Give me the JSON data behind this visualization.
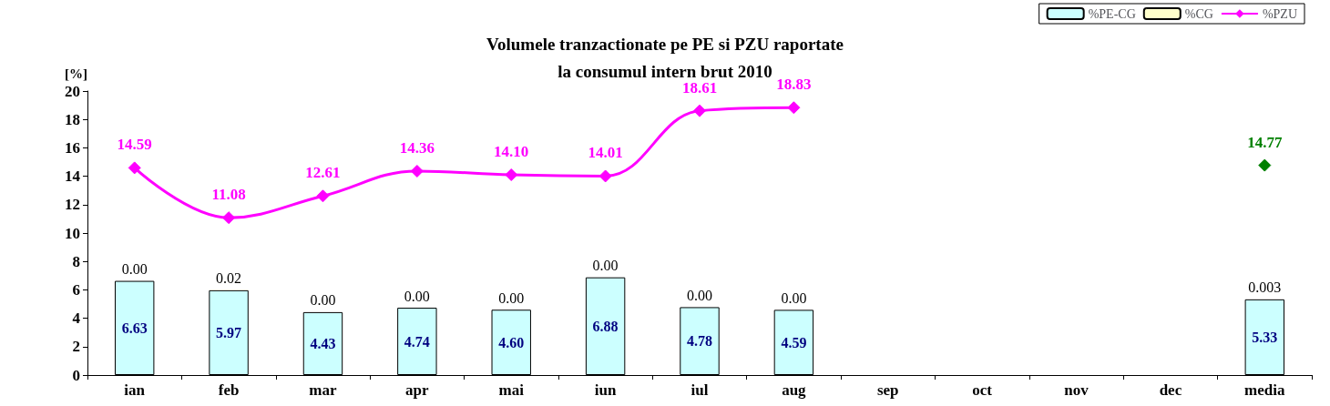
{
  "chart_data": {
    "type": "bar",
    "title": "Volumele tranzactionate pe PE si PZU raportate\nla consumul intern brut 2010",
    "ylabel": "[%]",
    "categories": [
      "ian",
      "feb",
      "mar",
      "apr",
      "mai",
      "iun",
      "iul",
      "aug",
      "sep",
      "oct",
      "nov",
      "dec",
      "media"
    ],
    "stacked": true,
    "legend": "top right",
    "grid": false,
    "ylim": [
      0,
      20
    ],
    "yticks": [
      0,
      2,
      4,
      6,
      8,
      10,
      12,
      14,
      16,
      18,
      20
    ],
    "series": [
      {
        "name": "%PE-CG",
        "color": "#ccffff",
        "values": [
          6.63,
          5.97,
          4.43,
          4.74,
          4.6,
          6.88,
          4.78,
          4.59,
          null,
          null,
          null,
          null,
          5.33
        ],
        "value_labels": [
          "6.63",
          "5.97",
          "4.43",
          "4.74",
          "4.60",
          "6.88",
          "4.78",
          "4.59",
          null,
          null,
          null,
          null,
          "5.33"
        ]
      },
      {
        "name": "%CG",
        "color": "#ffffcc",
        "values": [
          0.0,
          0.02,
          0.0,
          0.0,
          0.0,
          0.0,
          0.0,
          0.0,
          null,
          null,
          null,
          null,
          0.003
        ],
        "value_labels": [
          "0.00",
          "0.02",
          "0.00",
          "0.00",
          "0.00",
          "0.00",
          "0.00",
          "0.00",
          null,
          null,
          null,
          null,
          "0.003"
        ]
      },
      {
        "name": "%PZU",
        "type": "line",
        "color": "#ff00ff",
        "marker": "diamond",
        "colors": [
          "#ff00ff",
          "#ff00ff",
          "#ff00ff",
          "#ff00ff",
          "#ff00ff",
          "#ff00ff",
          "#ff00ff",
          "#ff00ff",
          "#ff00ff",
          "#ff00ff",
          "#ff00ff",
          "#ff00ff",
          "#008000"
        ],
        "values": [
          14.59,
          11.08,
          12.61,
          14.36,
          14.1,
          14.01,
          18.61,
          18.83,
          null,
          null,
          null,
          null,
          14.77
        ],
        "value_labels": [
          "14.59",
          "11.08",
          "12.61",
          "14.36",
          "14.10",
          "14.01",
          "18.61",
          "18.83",
          null,
          null,
          null,
          null,
          "14.77"
        ]
      }
    ]
  }
}
